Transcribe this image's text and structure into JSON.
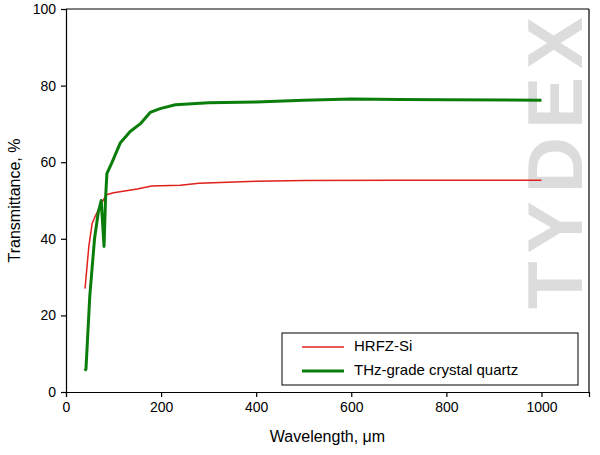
{
  "chart_data": {
    "type": "line",
    "x_label": "Wavelength, μm",
    "y_label": "Transmittance, %",
    "watermark": "TYDEX",
    "xlim": [
      0,
      1100
    ],
    "xticks": [
      0,
      200,
      400,
      600,
      800,
      1000
    ],
    "ylim": [
      0,
      100
    ],
    "yticks": [
      0,
      20,
      40,
      60,
      80,
      100
    ],
    "grid": false,
    "legend": "lower right",
    "series": [
      {
        "name": "HRFZ-Si",
        "color": "#e0201b",
        "x": [
          40,
          48,
          55,
          62,
          70,
          78,
          85,
          100,
          150,
          180,
          240,
          280,
          400,
          500,
          700,
          1000
        ],
        "values": [
          27,
          38,
          44,
          46,
          48,
          50,
          51.5,
          52,
          53,
          53.8,
          54,
          54.5,
          55,
          55.2,
          55.3,
          55.3
        ]
      },
      {
        "name": "THz-grade crystal quartz",
        "color": "#0a7d0a",
        "x": [
          40,
          42,
          50,
          60,
          68,
          74,
          77,
          80,
          83,
          86,
          97,
          114,
          135,
          156,
          177,
          198,
          230,
          300,
          400,
          500,
          600,
          700,
          800,
          1000
        ],
        "values": [
          5.5,
          6,
          25,
          40,
          47,
          50,
          44,
          38,
          50,
          57,
          60,
          65,
          68,
          70,
          73,
          74,
          75,
          75.5,
          75.7,
          76.2,
          76.5,
          76.4,
          76.3,
          76.2
        ]
      }
    ]
  }
}
